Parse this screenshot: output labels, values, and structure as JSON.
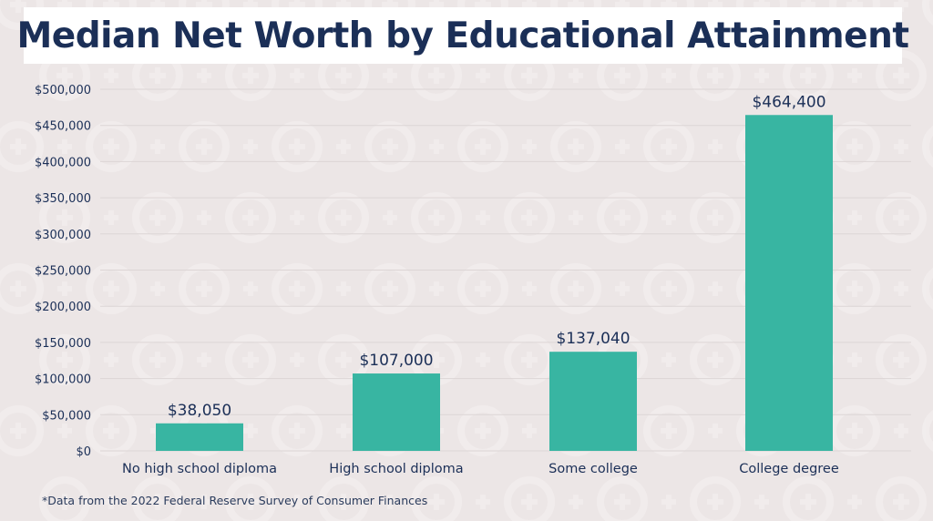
{
  "chart_data": {
    "type": "bar",
    "title": "Median Net Worth by Educational Attainment",
    "categories": [
      "No high school diploma",
      "High school diploma",
      "Some college",
      "College degree"
    ],
    "values": [
      38050,
      107000,
      137040,
      464400
    ],
    "data_labels": [
      "$38,050",
      "$107,000",
      "$137,040",
      "$464,400"
    ],
    "ylim": [
      0,
      500000
    ],
    "yticks": [
      0,
      50000,
      100000,
      150000,
      200000,
      250000,
      300000,
      350000,
      400000,
      450000,
      500000
    ],
    "ytick_labels": [
      "$0",
      "$50,000",
      "$100,000",
      "$150,000",
      "$200,000",
      "$250,000",
      "$300,000",
      "$350,000",
      "$400,000",
      "$450,000",
      "$500,000"
    ],
    "xlabel": "",
    "ylabel": "",
    "grid": true,
    "legend": "none",
    "bar_color": "#38b5a2",
    "text_color": "#1b2f57"
  },
  "footnote": "*Data from the 2022 Federal Reserve Survey of Consumer Finances"
}
